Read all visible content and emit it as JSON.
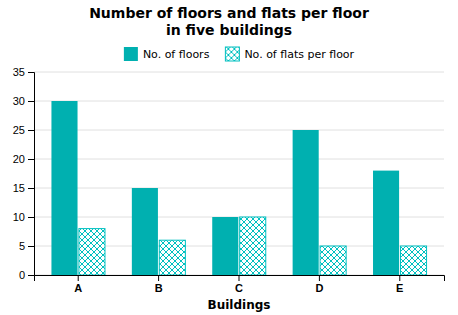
{
  "chart_data": {
    "type": "bar",
    "title": "Number of floors and flats per floor\nin five buildings",
    "xlabel": "Buildings",
    "categories": [
      "A",
      "B",
      "C",
      "D",
      "E"
    ],
    "series": [
      {
        "name": "No. of floors",
        "color": "#00B0B0",
        "values": [
          30,
          15,
          10,
          25,
          18
        ]
      },
      {
        "name": "No. of flats per floor",
        "color": "#00C0C0",
        "values": [
          8,
          6,
          10,
          5,
          5
        ]
      }
    ],
    "ylim": [
      0,
      35
    ],
    "yticks": [
      0,
      5,
      10,
      15,
      20,
      25,
      30,
      35
    ],
    "grid": true,
    "legend": "top"
  }
}
